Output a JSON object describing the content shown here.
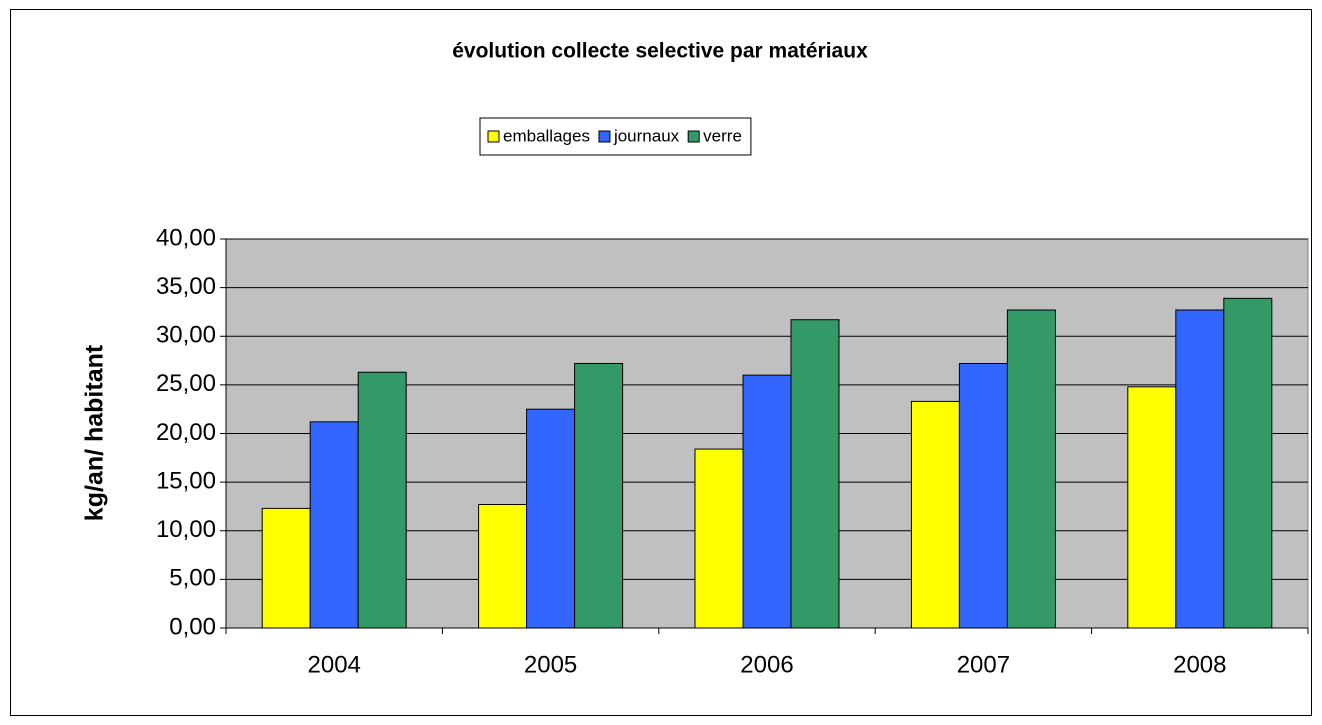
{
  "chart_data": {
    "type": "bar",
    "title": "évolution collecte selective par matériaux",
    "y_label": "kg/an/ habitant",
    "categories": [
      "2004",
      "2005",
      "2006",
      "2007",
      "2008"
    ],
    "series": [
      {
        "name": "emballages",
        "color": "#ffff00",
        "values": [
          12.3,
          12.7,
          18.4,
          23.3,
          24.8
        ]
      },
      {
        "name": "journaux",
        "color": "#3366ff",
        "values": [
          21.2,
          22.5,
          26.0,
          27.2,
          32.7
        ]
      },
      {
        "name": "verre",
        "color": "#339966",
        "values": [
          26.3,
          27.2,
          31.7,
          32.7,
          33.9
        ]
      }
    ],
    "ylim": [
      0,
      40
    ],
    "yticks": [
      {
        "value": 0,
        "label": "0,00"
      },
      {
        "value": 5,
        "label": "5,00"
      },
      {
        "value": 10,
        "label": "10,00"
      },
      {
        "value": 15,
        "label": "15,00"
      },
      {
        "value": 20,
        "label": "20,00"
      },
      {
        "value": 25,
        "label": "25,00"
      },
      {
        "value": 30,
        "label": "30,00"
      },
      {
        "value": 35,
        "label": "35,00"
      },
      {
        "value": 40,
        "label": "40,00"
      }
    ],
    "grid": true,
    "legend": "top",
    "plot_background": "#c0c0c0"
  }
}
